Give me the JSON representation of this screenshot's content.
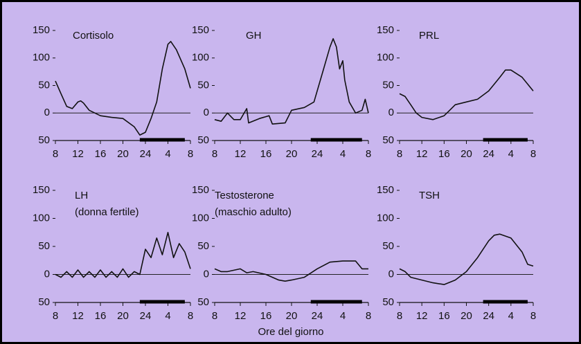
{
  "xlabel": "Ore del giorno",
  "chart_data": [
    {
      "type": "line",
      "title": "Cortisolo",
      "x": [
        8,
        9,
        10,
        11,
        12,
        12.5,
        13,
        14,
        16,
        18,
        20,
        22,
        23,
        24,
        25,
        26,
        27,
        28,
        28.5,
        29.5,
        31,
        32
      ],
      "values": [
        58,
        35,
        12,
        8,
        20,
        22,
        18,
        5,
        -5,
        -8,
        -10,
        -25,
        -40,
        -35,
        -10,
        20,
        80,
        125,
        130,
        115,
        80,
        45
      ],
      "night": [
        23,
        31
      ],
      "xlim": [
        8,
        32
      ],
      "xticks": [
        8,
        12,
        16,
        20,
        24,
        {
          "value": 28,
          "label": "4"
        },
        {
          "value": 32,
          "label": "8"
        }
      ],
      "ylim": [
        -50,
        150
      ],
      "yticks": [
        150,
        100,
        50,
        0,
        {
          "value": -50,
          "label": "50"
        }
      ]
    },
    {
      "type": "line",
      "title": "GH",
      "x": [
        8,
        9,
        10,
        11,
        12,
        13,
        13.3,
        15,
        16.5,
        17,
        19,
        20,
        22,
        23.5,
        25,
        26,
        26.5,
        27,
        27.5,
        28,
        28.3,
        29,
        30,
        31,
        31.5,
        32
      ],
      "values": [
        -12,
        -15,
        0,
        -12,
        -12,
        8,
        -18,
        -10,
        -5,
        -20,
        -18,
        5,
        10,
        20,
        80,
        120,
        135,
        120,
        80,
        95,
        60,
        20,
        0,
        5,
        25,
        0
      ],
      "night": [
        23,
        31
      ],
      "xlim": [
        8,
        32
      ],
      "xticks": [
        8,
        12,
        16,
        20,
        24,
        {
          "value": 28,
          "label": "4"
        },
        {
          "value": 32,
          "label": "8"
        }
      ],
      "ylim": [
        -50,
        150
      ],
      "yticks": [
        150,
        100,
        50,
        0,
        {
          "value": -50,
          "label": "50"
        }
      ]
    },
    {
      "type": "line",
      "title": "PRL",
      "x": [
        8,
        9,
        10,
        11,
        12,
        14,
        16,
        17,
        18,
        20,
        22,
        24,
        26,
        27,
        28,
        30,
        32
      ],
      "values": [
        35,
        30,
        15,
        0,
        -8,
        -12,
        -5,
        5,
        15,
        20,
        25,
        40,
        65,
        78,
        78,
        65,
        40
      ],
      "night": [
        23,
        31
      ],
      "xlim": [
        8,
        32
      ],
      "xticks": [
        8,
        12,
        16,
        20,
        24,
        {
          "value": 28,
          "label": "4"
        },
        {
          "value": 32,
          "label": "8"
        }
      ],
      "ylim": [
        -50,
        150
      ],
      "yticks": [
        150,
        100,
        50,
        0,
        {
          "value": -50,
          "label": "50"
        }
      ]
    },
    {
      "type": "line",
      "title": "LH",
      "subtitle": "(donna fertile)",
      "x": [
        8,
        9,
        10,
        11,
        12,
        13,
        14,
        15,
        16,
        17,
        18,
        19,
        20,
        21,
        22,
        23,
        24,
        25,
        26,
        27,
        28,
        29,
        30,
        31,
        32
      ],
      "values": [
        0,
        -5,
        5,
        -5,
        8,
        -5,
        5,
        -5,
        8,
        -5,
        5,
        -5,
        10,
        -5,
        5,
        0,
        45,
        30,
        65,
        35,
        75,
        30,
        55,
        40,
        10
      ],
      "night": [
        23,
        31
      ],
      "xlim": [
        8,
        32
      ],
      "xticks": [
        8,
        12,
        16,
        20,
        24,
        {
          "value": 28,
          "label": "4"
        },
        {
          "value": 32,
          "label": "8"
        }
      ],
      "ylim": [
        -50,
        150
      ],
      "yticks": [
        150,
        100,
        50,
        0,
        {
          "value": -50,
          "label": "50"
        }
      ]
    },
    {
      "type": "line",
      "title": "Testosterone",
      "subtitle": "(maschio adulto)",
      "x": [
        8,
        9,
        10,
        12,
        13,
        14,
        16,
        18,
        19,
        20,
        22,
        24,
        26,
        28,
        30,
        31,
        32
      ],
      "values": [
        10,
        5,
        5,
        10,
        3,
        5,
        0,
        -10,
        -12,
        -10,
        -5,
        10,
        22,
        24,
        24,
        10,
        10
      ],
      "night": [
        23,
        31
      ],
      "xlim": [
        8,
        32
      ],
      "xticks": [
        8,
        12,
        16,
        20,
        24,
        {
          "value": 28,
          "label": "4"
        },
        {
          "value": 32,
          "label": "8"
        }
      ],
      "ylim": [
        -50,
        150
      ],
      "yticks": [
        150,
        100,
        50,
        0,
        {
          "value": -50,
          "label": "50"
        }
      ]
    },
    {
      "type": "line",
      "title": "TSH",
      "x": [
        8,
        9,
        10,
        12,
        14,
        16,
        18,
        20,
        22,
        24,
        25,
        26,
        28,
        30,
        31,
        32
      ],
      "values": [
        10,
        5,
        -5,
        -10,
        -15,
        -18,
        -10,
        5,
        30,
        60,
        70,
        72,
        65,
        40,
        18,
        15
      ],
      "night": [
        23,
        31
      ],
      "xlim": [
        8,
        32
      ],
      "xticks": [
        8,
        12,
        16,
        20,
        24,
        {
          "value": 28,
          "label": "4"
        },
        {
          "value": 32,
          "label": "8"
        }
      ],
      "ylim": [
        -50,
        150
      ],
      "yticks": [
        150,
        100,
        50,
        0,
        {
          "value": -50,
          "label": "50"
        }
      ]
    }
  ]
}
